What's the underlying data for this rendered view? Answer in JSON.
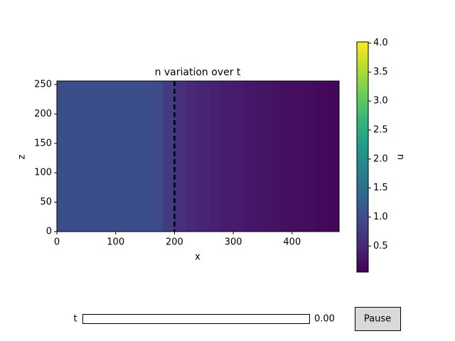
{
  "chart_data": {
    "type": "heatmap",
    "title": "n variation over t",
    "xlabel": "x",
    "ylabel": "z",
    "xlim": [
      0,
      480
    ],
    "ylim": [
      0,
      256
    ],
    "xticks": [
      0,
      100,
      200,
      300,
      400
    ],
    "yticks": [
      0,
      50,
      100,
      150,
      200,
      250
    ],
    "colormap": "viridis",
    "x_edges": [
      0,
      20,
      40,
      60,
      80,
      100,
      120,
      140,
      160,
      180,
      200,
      220,
      240,
      260,
      280,
      300,
      320,
      340,
      360,
      380,
      400,
      420,
      440,
      460,
      480
    ],
    "values": [
      1.0,
      1.0,
      1.0,
      1.0,
      1.0,
      1.0,
      1.0,
      1.0,
      0.97,
      0.75,
      0.6,
      0.5,
      0.45,
      0.4,
      0.36,
      0.33,
      0.3,
      0.27,
      0.24,
      0.21,
      0.18,
      0.16,
      0.14,
      0.12
    ],
    "vline": 200,
    "colorbar": {
      "label": "n",
      "lim": [
        0.05,
        4.02
      ],
      "ticks": [
        0.5,
        {
          "value": 1,
          "label": "1.0"
        },
        1.5,
        {
          "value": 2,
          "label": "2.0"
        },
        2.5,
        {
          "value": 3,
          "label": "3.0"
        },
        3.5,
        {
          "value": 4,
          "label": "4.0"
        }
      ]
    },
    "slider": {
      "label": "t",
      "value": 0,
      "value_label": "0.00"
    },
    "button": "Pause"
  }
}
